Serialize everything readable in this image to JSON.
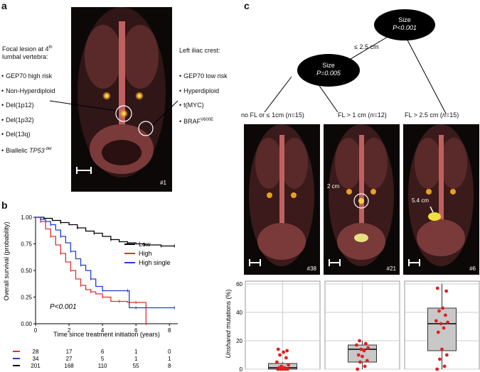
{
  "panel_a": {
    "letter": "a",
    "left_heading": [
      "Focal lesion at 4",
      "th",
      "lumbal vertebra:"
    ],
    "left_items": [
      "GEP70 high risk",
      "Non-Hyperdiploid",
      "Del(1p12)",
      "Del(1p32)",
      "Del(13q)"
    ],
    "left_last": [
      "Biallelic ",
      "TP53",
      " del"
    ],
    "right_heading": "Left iliac crest:",
    "right_items": [
      "GEP70 low risk",
      "Hyperdiploid",
      "t(MYC)"
    ],
    "right_last": [
      "BRAF",
      "V600E"
    ],
    "scan_id": "#1"
  },
  "panel_b": {
    "letter": "b",
    "p_value": "P<0.001",
    "risk_table": [
      {
        "color": "#e03030",
        "counts": [
          "28",
          "17",
          "6",
          "1",
          "0"
        ]
      },
      {
        "color": "#1f3fd0",
        "counts": [
          "34",
          "27",
          "5",
          "1",
          "1"
        ]
      },
      {
        "color": "#000000",
        "counts": [
          "201",
          "168",
          "110",
          "55",
          "8"
        ]
      }
    ]
  },
  "panel_c": {
    "letter": "c",
    "tree": {
      "root": {
        "label": "Size",
        "p": "P<0.001"
      },
      "child": {
        "label": "Size",
        "p": "P=0.005"
      },
      "edge_label": "≤ 2.5 cm"
    },
    "groups": [
      {
        "label_pre": "no FL or ≤ 1cm (",
        "n": "n",
        "label_post": "=15)",
        "scan_id": "#38",
        "annotation": ""
      },
      {
        "label_pre": "FL > 1 cm (",
        "n": "n",
        "label_post": "=12)",
        "scan_id": "#21",
        "annotation": "2 cm"
      },
      {
        "label_pre": "FL > 2.5 cm (",
        "n": "n",
        "label_post": "=15)",
        "scan_id": "#6",
        "annotation": "5.4 cm"
      }
    ]
  },
  "chart_data": [
    {
      "type": "line",
      "title": "",
      "xlabel": "Time since treatment initiation (years)",
      "ylabel": "Overall survival (probability)",
      "xlim": [
        0,
        8.5
      ],
      "ylim": [
        0,
        1.0
      ],
      "xticks": [
        "0",
        "2",
        "4",
        "6",
        "8"
      ],
      "yticks": [
        "0.00",
        "0.25",
        "0.50",
        "0.75",
        "1.00"
      ],
      "legend": "right",
      "series": [
        {
          "name": "Low",
          "color": "#000000",
          "x": [
            0,
            0.5,
            1,
            1.5,
            2,
            2.5,
            3,
            3.5,
            4,
            4.5,
            5,
            5.5,
            6,
            6.5,
            7,
            7.5,
            8,
            8.3
          ],
          "y": [
            1.0,
            0.99,
            0.97,
            0.95,
            0.93,
            0.9,
            0.87,
            0.85,
            0.82,
            0.79,
            0.77,
            0.76,
            0.75,
            0.74,
            0.74,
            0.73,
            0.73,
            0.73
          ]
        },
        {
          "name": "High",
          "color": "#e03030",
          "x": [
            0,
            0.3,
            0.6,
            0.9,
            1.2,
            1.5,
            1.8,
            2.1,
            2.4,
            2.7,
            3.0,
            3.3,
            3.6,
            4.0,
            4.5,
            5.0,
            5.5,
            6.0,
            6.5,
            6.6
          ],
          "y": [
            1.0,
            0.96,
            0.89,
            0.82,
            0.74,
            0.66,
            0.58,
            0.5,
            0.42,
            0.36,
            0.32,
            0.3,
            0.28,
            0.25,
            0.21,
            0.21,
            0.2,
            0.2,
            0.2,
            0.0
          ]
        },
        {
          "name": "High single",
          "color": "#1f3fd0",
          "x": [
            0,
            0.3,
            0.6,
            0.9,
            1.2,
            1.5,
            1.8,
            2.1,
            2.4,
            2.7,
            3.0,
            3.3,
            3.6,
            4.0,
            5.0,
            5.5,
            5.6,
            6.0,
            7.0,
            8.3
          ],
          "y": [
            1.0,
            0.98,
            0.96,
            0.93,
            0.88,
            0.82,
            0.76,
            0.68,
            0.61,
            0.55,
            0.5,
            0.42,
            0.35,
            0.31,
            0.31,
            0.31,
            0.15,
            0.15,
            0.15,
            0.15
          ]
        }
      ]
    },
    {
      "type": "box",
      "title": "",
      "xlabel": "",
      "ylabel": "Unshared mutations (%)",
      "ylim": [
        0,
        62
      ],
      "yticks": [
        "0",
        "20",
        "40",
        "60"
      ],
      "categories": [
        "no FL or ≤ 1cm (n=15)",
        "FL > 1 cm (n=12)",
        "FL > 2.5 cm (n=15)"
      ],
      "boxes": [
        {
          "q1": 0,
          "median": 1,
          "q3": 4,
          "whisker_low": 0,
          "whisker_high": 5,
          "points": [
            0,
            0,
            0,
            0,
            0,
            1,
            1,
            2,
            3,
            5,
            8,
            10,
            12,
            13,
            14
          ]
        },
        {
          "q1": 5,
          "median": 14,
          "q3": 17,
          "whisker_low": 0,
          "whisker_high": 20,
          "points": [
            0,
            2,
            5,
            6,
            9,
            10,
            13,
            14,
            15,
            17,
            18,
            20
          ]
        },
        {
          "q1": 13,
          "median": 32,
          "q3": 43,
          "whisker_low": 0,
          "whisker_high": 60,
          "points": [
            0,
            2,
            7,
            10,
            14,
            26,
            29,
            32,
            33,
            34,
            38,
            41,
            43,
            55,
            57
          ]
        }
      ]
    }
  ]
}
